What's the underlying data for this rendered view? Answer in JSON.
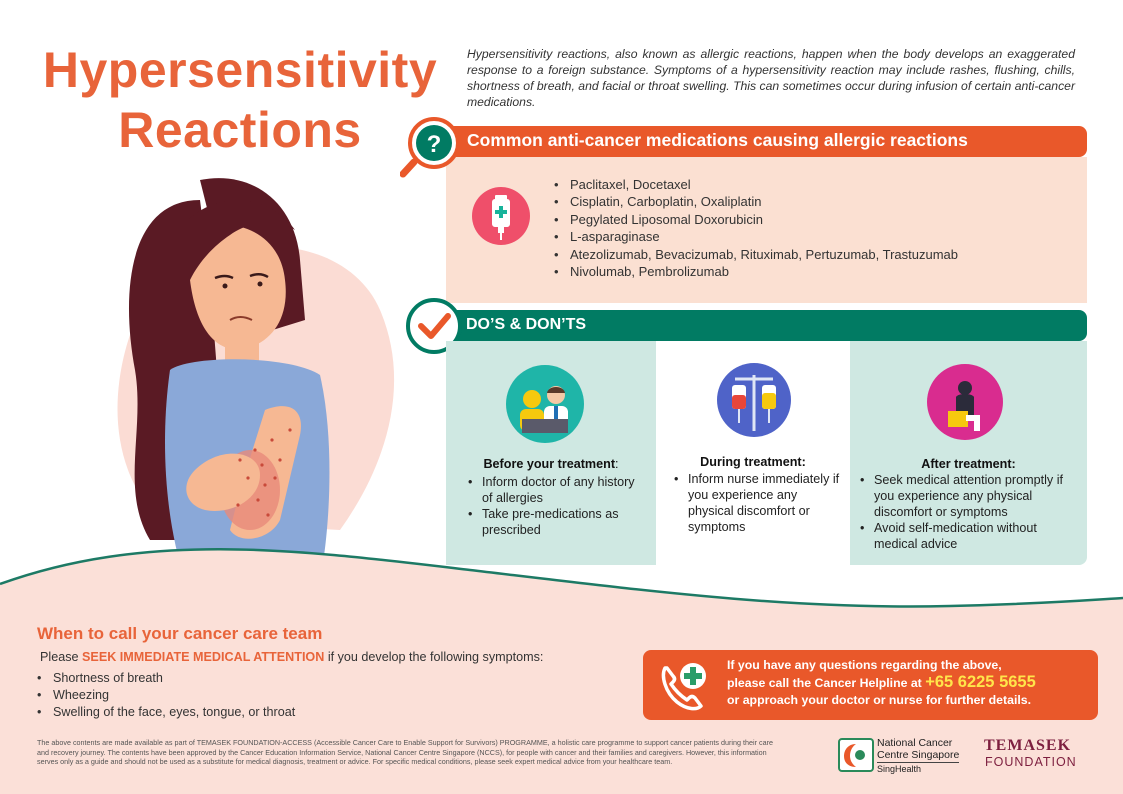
{
  "header": {
    "title_line1": "Hypersensitivity",
    "title_line2": "Reactions",
    "intro": "Hypersensitivity reactions, also known as allergic reactions, happen when the body develops an exaggerated response to a foreign substance. Symptoms of a hypersensitivity reaction may include rashes, flushing, chills, shortness of breath, and facial or throat swelling. This can sometimes occur during infusion of certain anti-cancer medications."
  },
  "medications": {
    "title": "Common anti-cancer medications causing allergic reactions",
    "icon": "iv-drip-bag-icon",
    "items": [
      "Paclitaxel, Docetaxel",
      "Cisplatin, Carboplatin, Oxaliplatin",
      "Pegylated Liposomal Doxorubicin",
      "L-asparaginase",
      "Atezolizumab, Bevacizumab, Rituximab, Pertuzumab, Trastuzumab",
      "Nivolumab, Pembrolizumab"
    ]
  },
  "dos_donts": {
    "title": "DO’S & DON’TS",
    "before": {
      "heading": "Before your treatment",
      "heading_suffix": ":",
      "icon": "doctor-consultation-icon",
      "items": [
        "Inform doctor of any history of allergies",
        "Take pre-medications as prescribed"
      ]
    },
    "during": {
      "heading": "During treatment:",
      "icon": "iv-drip-stand-icon",
      "items": [
        "Inform nurse immediately if you experience any physical discomfort or symptoms"
      ]
    },
    "after": {
      "heading": "After treatment:",
      "icon": "unwell-patient-icon",
      "items": [
        "Seek medical attention promptly if you experience any physical discomfort or symptoms",
        "Avoid self-medication without medical advice"
      ]
    }
  },
  "call_team": {
    "title": "When to call your cancer care team",
    "sub_prefix": "Please ",
    "sub_highlight": "SEEK IMMEDIATE MEDICAL ATTENTION",
    "sub_suffix": " if you develop the following symptoms:",
    "symptoms": [
      "Shortness of breath",
      "Wheezing",
      "Swelling of the face, eyes, tongue, or throat"
    ]
  },
  "helpline": {
    "line1": "If you have any questions regarding the above,",
    "line2_prefix": "please call the Cancer Helpline at ",
    "number": "+65 6225 5655",
    "line3": "or approach your doctor or nurse for further details."
  },
  "disclaimer": "The above contents are made available as part of TEMASEK FOUNDATION-ACCESS (Accessible Cancer Care to Enable Support for Survivors) PROGRAMME, a holistic care programme to support cancer patients during their care and recovery journey. The contents have been approved by the Cancer Education Information Service, National Cancer Centre Singapore (NCCS), for people with cancer and their families and caregivers. However, this information serves only as a guide and should not be used as a substitute for medical diagnosis, treatment or advice. For specific medical conditions, please seek expert medical advice from your healthcare team.",
  "logos": {
    "nccs_line1": "National Cancer",
    "nccs_line2": "Centre Singapore",
    "nccs_sub": "SingHealth",
    "temasek_name": "TEMASEK",
    "temasek_sub": "FOUNDATION"
  },
  "colors": {
    "orange": "#e9582a",
    "title_orange": "#e8643a",
    "green": "#017b63",
    "peach": "#fbe0d2",
    "mint": "#cfe8e2",
    "maroon": "#7d1f3f",
    "yellow": "#ffe54a"
  }
}
